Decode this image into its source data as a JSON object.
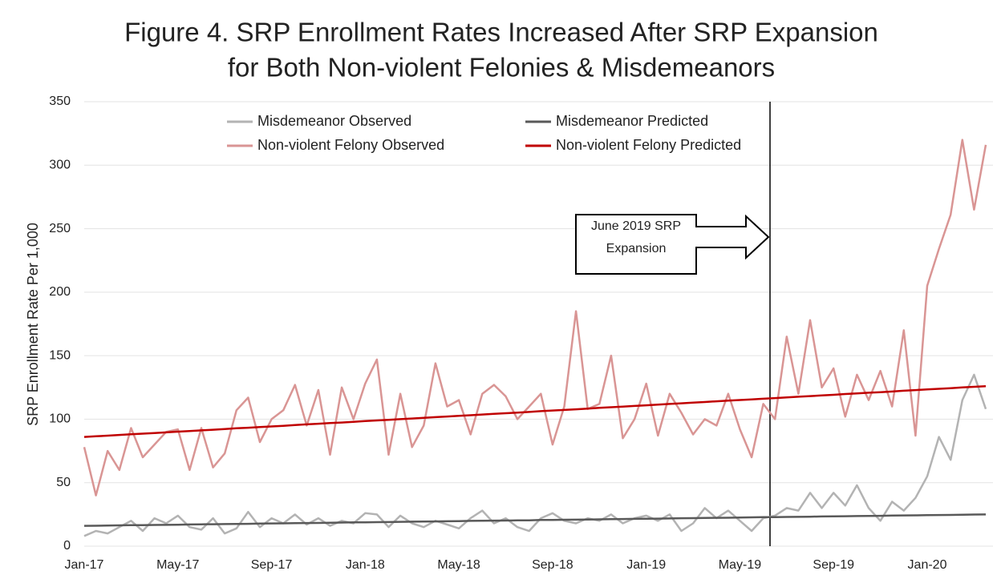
{
  "chart_data": {
    "type": "line",
    "title": [
      "Figure 4. SRP Enrollment Rates Increased After SRP Expansion",
      "for Both Non-violent Felonies & Misdemeanors"
    ],
    "y_label": "SRP Enrollment Rate Per 1,000",
    "annotation": [
      "June 2019 SRP",
      "Expansion"
    ],
    "categories": [
      "Jan-17",
      null,
      null,
      null,
      null,
      null,
      null,
      null,
      "May-17",
      null,
      null,
      null,
      null,
      null,
      null,
      null,
      "Sep-17",
      null,
      null,
      null,
      null,
      null,
      null,
      null,
      "Jan-18",
      null,
      null,
      null,
      null,
      null,
      null,
      null,
      "May-18",
      null,
      null,
      null,
      null,
      null,
      null,
      null,
      "Sep-18",
      null,
      null,
      null,
      null,
      null,
      null,
      null,
      "Jan-19",
      null,
      null,
      null,
      null,
      null,
      null,
      null,
      "May-19",
      null,
      null,
      null,
      null,
      null,
      null,
      null,
      "Sep-19",
      null,
      null,
      null,
      null,
      null,
      null,
      null,
      "Jan-20",
      null,
      null,
      null,
      null,
      null
    ],
    "ylim": [
      0,
      350
    ],
    "yticks": [
      0,
      50,
      100,
      150,
      200,
      250,
      300,
      350
    ],
    "grid": true,
    "series": [
      {
        "name": "Misdemeanor Observed",
        "color": "#b3b3b3",
        "values": [
          8,
          12,
          10,
          15,
          20,
          12,
          22,
          18,
          24,
          15,
          13,
          22,
          10,
          14,
          27,
          15,
          22,
          18,
          25,
          17,
          22,
          16,
          20,
          18,
          26,
          25,
          15,
          24,
          18,
          15,
          20,
          17,
          14,
          22,
          28,
          18,
          22,
          15,
          12,
          22,
          26,
          20,
          18,
          22,
          20,
          25,
          18,
          22,
          24,
          20,
          25,
          12,
          18,
          30,
          22,
          28,
          20,
          12,
          22,
          24,
          30,
          28,
          42,
          30,
          42,
          32,
          48,
          30,
          20,
          35,
          28,
          38,
          55,
          86,
          68,
          115,
          135,
          108
        ]
      },
      {
        "name": "Misdemeanor Predicted",
        "color": "#595959",
        "values": [
          16.0,
          16.1,
          16.2,
          16.4,
          16.5,
          16.6,
          16.7,
          16.8,
          16.9,
          17.1,
          17.2,
          17.3,
          17.4,
          17.5,
          17.6,
          17.8,
          17.9,
          18.0,
          18.1,
          18.2,
          18.3,
          18.5,
          18.6,
          18.7,
          18.8,
          18.9,
          19.0,
          19.2,
          19.3,
          19.4,
          19.5,
          19.6,
          19.7,
          19.9,
          20.0,
          20.1,
          20.2,
          20.3,
          20.4,
          20.6,
          20.7,
          20.8,
          20.9,
          21.0,
          21.1,
          21.3,
          21.4,
          21.5,
          21.6,
          21.7,
          21.8,
          22.0,
          22.1,
          22.2,
          22.3,
          22.4,
          22.5,
          22.7,
          22.8,
          22.9,
          23.0,
          23.1,
          23.2,
          23.4,
          23.5,
          23.6,
          23.7,
          23.8,
          23.9,
          24.1,
          24.2,
          24.3,
          24.4,
          24.5,
          24.6,
          24.8,
          24.9,
          25.0
        ]
      },
      {
        "name": "Non-violent Felony Observed",
        "color": "#d99594",
        "values": [
          78,
          40,
          75,
          60,
          93,
          70,
          80,
          90,
          92,
          60,
          93,
          62,
          73,
          107,
          117,
          82,
          100,
          107,
          127,
          95,
          123,
          72,
          125,
          100,
          128,
          147,
          72,
          120,
          78,
          95,
          144,
          110,
          115,
          88,
          120,
          127,
          118,
          100,
          110,
          120,
          80,
          110,
          185,
          108,
          112,
          150,
          85,
          100,
          128,
          87,
          120,
          105,
          88,
          100,
          95,
          120,
          92,
          70,
          112,
          100,
          165,
          120,
          178,
          125,
          140,
          102,
          135,
          115,
          138,
          110,
          170,
          87,
          205,
          234,
          261,
          320,
          265,
          316
        ]
      },
      {
        "name": "Non-violent Felony Predicted",
        "color": "#c00000",
        "values": [
          86.0,
          86.5,
          87.0,
          87.6,
          88.1,
          88.6,
          89.1,
          89.6,
          90.2,
          90.7,
          91.2,
          91.7,
          92.2,
          92.8,
          93.3,
          93.8,
          94.3,
          94.8,
          95.4,
          95.9,
          96.4,
          96.9,
          97.4,
          97.9,
          98.5,
          99.0,
          99.5,
          100.0,
          100.5,
          101.1,
          101.6,
          102.1,
          102.6,
          103.1,
          103.7,
          104.2,
          104.7,
          105.2,
          105.7,
          106.3,
          106.8,
          107.3,
          107.8,
          108.3,
          108.9,
          109.4,
          109.9,
          110.4,
          110.9,
          111.5,
          112.0,
          112.5,
          113.0,
          113.5,
          114.1,
          114.6,
          115.1,
          115.6,
          116.1,
          116.6,
          117.2,
          117.7,
          118.2,
          118.7,
          119.2,
          119.8,
          120.3,
          120.8,
          121.3,
          121.8,
          122.4,
          122.9,
          123.4,
          123.9,
          124.4,
          125.0,
          125.5,
          126.0
        ]
      }
    ]
  }
}
